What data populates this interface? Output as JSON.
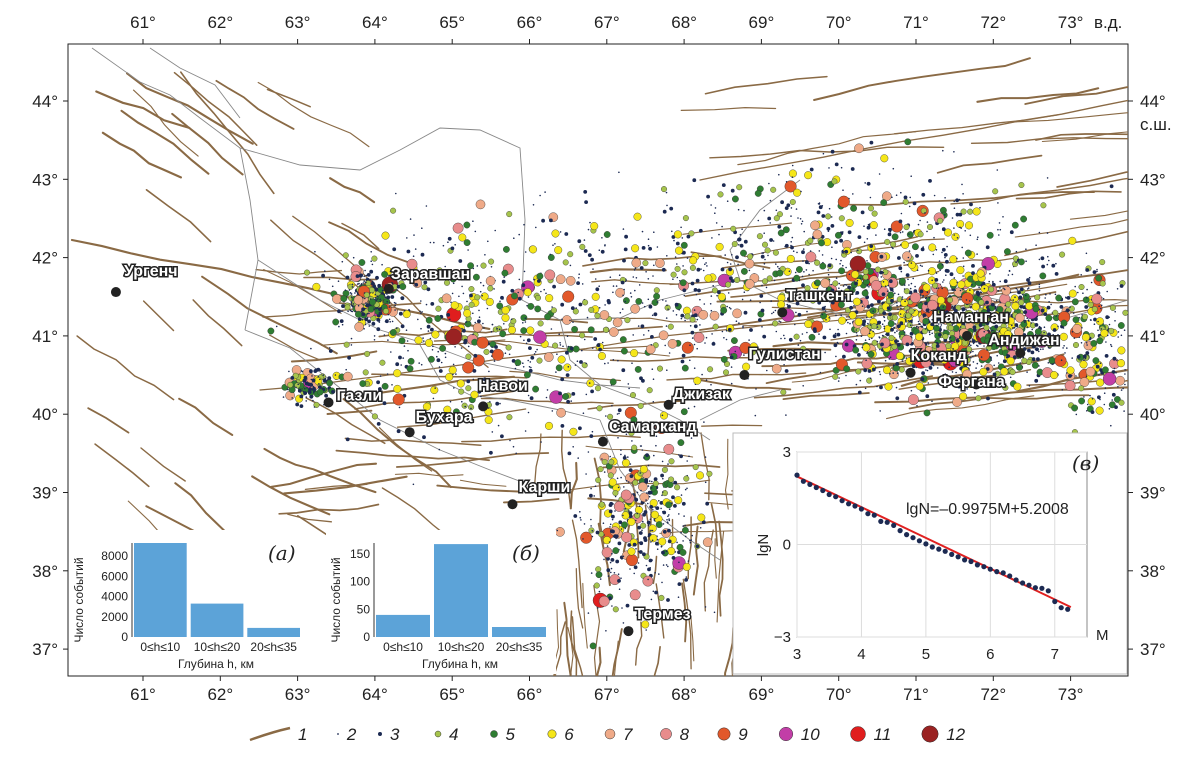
{
  "colors": {
    "fault": "#8a6a45",
    "class2": "#1c2a52",
    "class3": "#1c2a52",
    "class4": "#a6c44c",
    "class5": "#2f7d32",
    "class6": "#f5e619",
    "class7": "#efaa88",
    "class8": "#e88c8c",
    "class9": "#e2582b",
    "class10": "#c23ea7",
    "class11": "#e01e1e",
    "class12": "#9a2222",
    "bar": "#5ca3d8",
    "regression": "#e02020"
  },
  "map": {
    "lon_ticks": [
      "61°",
      "62°",
      "63°",
      "64°",
      "65°",
      "66°",
      "67°",
      "68°",
      "69°",
      "70°",
      "71°",
      "72°",
      "73°"
    ],
    "lon_suffix": "в.д.",
    "lat_ticks": [
      "44°",
      "43°",
      "42°",
      "41°",
      "40°",
      "39°",
      "38°",
      "37°"
    ],
    "lat_suffix": "с.ш.",
    "cities": [
      {
        "name": "Ургенч",
        "lon": 60.65,
        "lat": 41.56
      },
      {
        "name": "Заравшан",
        "lon": 64.18,
        "lat": 41.6
      },
      {
        "name": "Газли",
        "lon": 63.4,
        "lat": 40.15
      },
      {
        "name": "Навои",
        "lon": 65.4,
        "lat": 40.1
      },
      {
        "name": "Бухара",
        "lon": 64.45,
        "lat": 39.77
      },
      {
        "name": "Карши",
        "lon": 65.78,
        "lat": 38.85
      },
      {
        "name": "Самарканд",
        "lon": 66.95,
        "lat": 39.65
      },
      {
        "name": "Джизак",
        "lon": 67.8,
        "lat": 40.12
      },
      {
        "name": "Термез",
        "lon": 67.28,
        "lat": 37.23
      },
      {
        "name": "Гулистан",
        "lon": 68.78,
        "lat": 40.5
      },
      {
        "name": "Ташкент",
        "lon": 69.27,
        "lat": 41.3
      },
      {
        "name": "Коканд",
        "lon": 70.93,
        "lat": 40.53
      },
      {
        "name": "Наманган",
        "lon": 71.66,
        "lat": 41.0
      },
      {
        "name": "Андижан",
        "lon": 72.35,
        "lat": 40.78
      },
      {
        "name": "Фергана",
        "lon": 71.78,
        "lat": 40.38
      }
    ]
  },
  "inset_a": {
    "label": "(а)",
    "ylabel": "Число событий",
    "xlabel": "Глубина h, км",
    "chart_data": {
      "type": "bar",
      "categories": [
        "0≤h≤10",
        "10≤h≤20",
        "20≤h≤35"
      ],
      "values": [
        9300,
        3300,
        900
      ],
      "ylim": [
        0,
        9300
      ],
      "yticks": [
        "0",
        "2000",
        "4000",
        "6000",
        "8000"
      ]
    }
  },
  "inset_b": {
    "label": "(б)",
    "ylabel": "Число событий",
    "xlabel": "Глубина h, км",
    "chart_data": {
      "type": "bar",
      "categories": [
        "0≤h≤10",
        "10≤h≤20",
        "20≤h≤35"
      ],
      "values": [
        40,
        168,
        18
      ],
      "ylim": [
        0,
        170
      ],
      "yticks": [
        "0",
        "50",
        "100",
        "150"
      ]
    }
  },
  "inset_c": {
    "label": "(в)",
    "ylabel": "lgN",
    "xlabel": "M",
    "equation": "lgN=–0.9975M+5.2008",
    "chart_data": {
      "type": "scatter",
      "x": [
        3.0,
        3.1,
        3.2,
        3.3,
        3.4,
        3.5,
        3.6,
        3.7,
        3.8,
        3.9,
        4.0,
        4.1,
        4.2,
        4.3,
        4.4,
        4.5,
        4.6,
        4.7,
        4.8,
        4.9,
        5.0,
        5.1,
        5.2,
        5.3,
        5.4,
        5.5,
        5.6,
        5.7,
        5.8,
        5.9,
        6.0,
        6.1,
        6.2,
        6.3,
        6.4,
        6.5,
        6.6,
        6.7,
        6.8,
        6.9,
        7.0,
        7.1,
        7.2
      ],
      "y": [
        2.25,
        2.05,
        1.95,
        1.85,
        1.75,
        1.62,
        1.55,
        1.42,
        1.32,
        1.25,
        1.15,
        1.0,
        0.95,
        0.75,
        0.72,
        0.62,
        0.45,
        0.32,
        0.22,
        0.12,
        0.02,
        -0.08,
        -0.15,
        -0.22,
        -0.32,
        -0.4,
        -0.5,
        -0.55,
        -0.66,
        -0.72,
        -0.8,
        -0.88,
        -0.92,
        -1.02,
        -1.15,
        -1.25,
        -1.32,
        -1.4,
        -1.42,
        -1.5,
        -1.85,
        -2.05,
        -2.1
      ],
      "xlim": [
        3,
        7.5
      ],
      "ylim": [
        -3,
        3
      ],
      "xticks": [
        "3",
        "4",
        "5",
        "6",
        "7"
      ],
      "yticks": [
        "3",
        "0",
        "−3"
      ],
      "fit": {
        "slope": -0.9975,
        "intercept": 5.2008
      }
    }
  },
  "legend": {
    "items": [
      "1",
      "2",
      "3",
      "4",
      "5",
      "6",
      "7",
      "8",
      "9",
      "10",
      "11",
      "12"
    ]
  }
}
